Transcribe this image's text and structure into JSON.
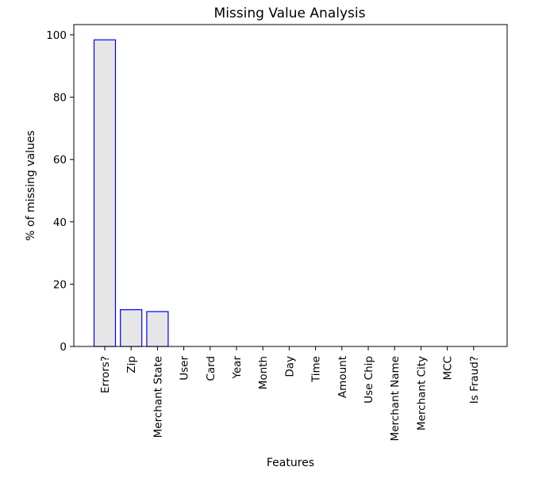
{
  "chart_data": {
    "type": "bar",
    "title": "Missing Value Analysis",
    "xlabel": "Features",
    "ylabel": "% of missing values",
    "categories": [
      "Errors?",
      "Zip",
      "Merchant State",
      "User",
      "Card",
      "Year",
      "Month",
      "Day",
      "Time",
      "Amount",
      "Use Chip",
      "Merchant Name",
      "Merchant City",
      "MCC",
      "Is Fraud?"
    ],
    "values": [
      98.4,
      11.8,
      11.2,
      0,
      0,
      0,
      0,
      0,
      0,
      0,
      0,
      0,
      0,
      0,
      0
    ],
    "ylim": [
      0,
      103.3
    ],
    "yticks": [
      0,
      20,
      40,
      60,
      80,
      100
    ],
    "grid": false,
    "legend": "none",
    "colors": {
      "bar_fill": "#e6e6e6",
      "bar_edge": "#0000ff",
      "axis": "#000000"
    }
  }
}
